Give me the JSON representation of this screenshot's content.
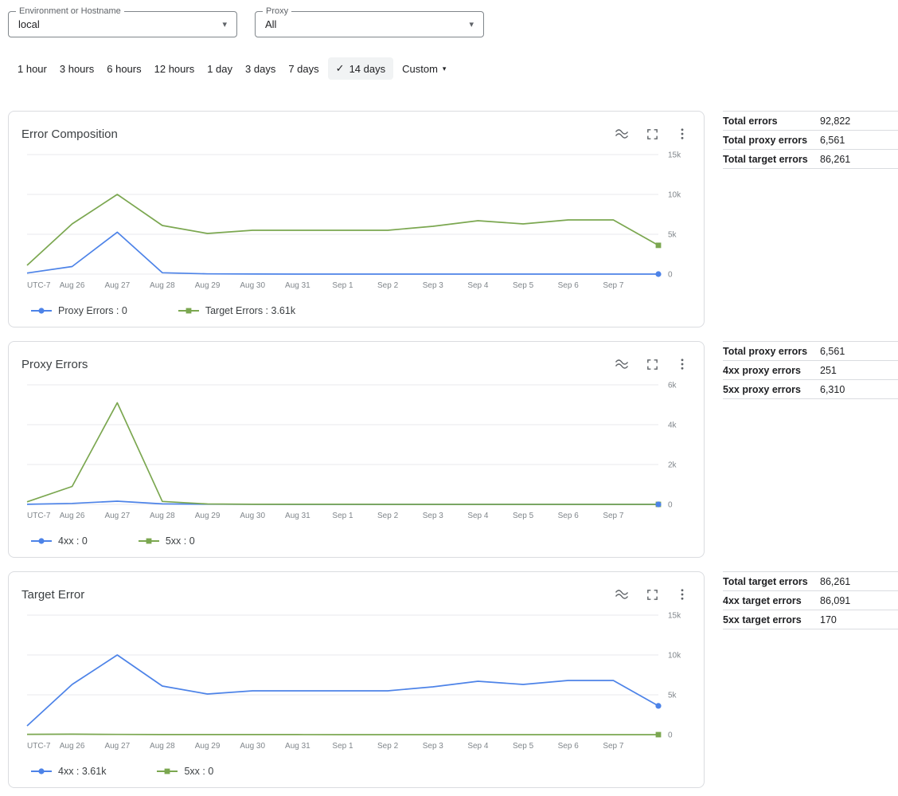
{
  "filters": {
    "environment": {
      "label": "Environment or Hostname",
      "value": "local"
    },
    "proxy": {
      "label": "Proxy",
      "value": "All"
    }
  },
  "icons": {
    "checkmark": "✓",
    "dropdown_arrow": "▾",
    "legend_toggle": "legend-toggle-icon",
    "fullscreen": "fullscreen-icon",
    "more_vert": "more-options-icon"
  },
  "time_range": {
    "options": [
      {
        "label": "1 hour"
      },
      {
        "label": "3 hours"
      },
      {
        "label": "6 hours"
      },
      {
        "label": "12 hours"
      },
      {
        "label": "1 day"
      },
      {
        "label": "3 days"
      },
      {
        "label": "7 days"
      },
      {
        "label": "14 days",
        "selected": true
      },
      {
        "label": "Custom",
        "dropdown": true
      }
    ]
  },
  "colors": {
    "blue_series": "#4d83e8",
    "green_series": "#7ba750",
    "grid": "#e8eaed",
    "axis_text": "#80868b",
    "icon_gray": "#5f6368"
  },
  "cards": [
    {
      "title": "Error Composition",
      "chart_data": {
        "type": "line",
        "x_ticks": [
          "UTC-7",
          "Aug 26",
          "Aug 27",
          "Aug 28",
          "Aug 29",
          "Aug 30",
          "Aug 31",
          "Sep 1",
          "Sep 2",
          "Sep 3",
          "Sep 4",
          "Sep 5",
          "Sep 6",
          "Sep 7"
        ],
        "ylim": [
          0,
          15000
        ],
        "yticks": [
          0,
          5000,
          10000,
          15000
        ],
        "ytick_labels": [
          "0",
          "5k",
          "10k",
          "15k"
        ],
        "grid": true,
        "legend_position": "bottom",
        "series": [
          {
            "name": "Proxy Errors",
            "legend": "Proxy Errors : 0",
            "color": "#4d83e8",
            "marker": "circle",
            "values": [
              135,
              950,
              5260,
              175,
              28,
              7,
              4,
              2,
              0,
              0,
              0,
              0,
              0,
              0,
              0
            ]
          },
          {
            "name": "Target Errors",
            "legend": "Target Errors : 3.61k",
            "color": "#7ba750",
            "marker": "square",
            "values": [
              1100,
              6300,
              10000,
              6100,
              5100,
              5500,
              5500,
              5500,
              5500,
              6000,
              6700,
              6300,
              6800,
              6800,
              3610
            ]
          }
        ]
      }
    },
    {
      "title": "Proxy Errors",
      "chart_data": {
        "type": "line",
        "x_ticks": [
          "UTC-7",
          "Aug 26",
          "Aug 27",
          "Aug 28",
          "Aug 29",
          "Aug 30",
          "Aug 31",
          "Sep 1",
          "Sep 2",
          "Sep 3",
          "Sep 4",
          "Sep 5",
          "Sep 6",
          "Sep 7"
        ],
        "ylim": [
          0,
          6000
        ],
        "yticks": [
          0,
          2000,
          4000,
          6000
        ],
        "ytick_labels": [
          "0",
          "2k",
          "4k",
          "6k"
        ],
        "grid": true,
        "legend_position": "bottom",
        "series": [
          {
            "name": "4xx",
            "legend": "4xx : 0",
            "color": "#4d83e8",
            "marker": "circle",
            "values": [
              5,
              50,
              160,
              25,
              8,
              2,
              1,
              0,
              0,
              0,
              0,
              0,
              0,
              0,
              0
            ]
          },
          {
            "name": "5xx",
            "legend": "5xx : 0",
            "color": "#7ba750",
            "marker": "square",
            "values": [
              130,
              900,
              5100,
              150,
              20,
              5,
              3,
              2,
              0,
              0,
              0,
              0,
              0,
              0,
              0
            ]
          }
        ]
      }
    },
    {
      "title": "Target Error",
      "chart_data": {
        "type": "line",
        "x_ticks": [
          "UTC-7",
          "Aug 26",
          "Aug 27",
          "Aug 28",
          "Aug 29",
          "Aug 30",
          "Aug 31",
          "Sep 1",
          "Sep 2",
          "Sep 3",
          "Sep 4",
          "Sep 5",
          "Sep 6",
          "Sep 7"
        ],
        "ylim": [
          0,
          15000
        ],
        "yticks": [
          0,
          5000,
          10000,
          15000
        ],
        "ytick_labels": [
          "0",
          "5k",
          "10k",
          "15k"
        ],
        "grid": true,
        "legend_position": "bottom",
        "series": [
          {
            "name": "4xx",
            "legend": "4xx : 3.61k",
            "color": "#4d83e8",
            "marker": "circle",
            "values": [
              1100,
              6300,
              10000,
              6100,
              5100,
              5500,
              5500,
              5500,
              5500,
              6000,
              6700,
              6300,
              6800,
              6800,
              3610
            ]
          },
          {
            "name": "5xx",
            "legend": "5xx : 0",
            "color": "#7ba750",
            "marker": "square",
            "values": [
              40,
              60,
              30,
              10,
              10,
              5,
              5,
              2,
              2,
              2,
              2,
              1,
              1,
              0,
              0
            ]
          }
        ]
      }
    }
  ],
  "stats_tables": [
    {
      "rows": [
        {
          "label": "Total errors",
          "value": "92,822"
        },
        {
          "label": "Total proxy errors",
          "value": "6,561"
        },
        {
          "label": "Total target errors",
          "value": "86,261"
        }
      ]
    },
    {
      "rows": [
        {
          "label": "Total proxy errors",
          "value": "6,561"
        },
        {
          "label": "4xx proxy errors",
          "value": "251"
        },
        {
          "label": "5xx proxy errors",
          "value": "6,310"
        }
      ]
    },
    {
      "rows": [
        {
          "label": "Total target errors",
          "value": "86,261"
        },
        {
          "label": "4xx target errors",
          "value": "86,091"
        },
        {
          "label": "5xx target errors",
          "value": "170"
        }
      ]
    }
  ]
}
